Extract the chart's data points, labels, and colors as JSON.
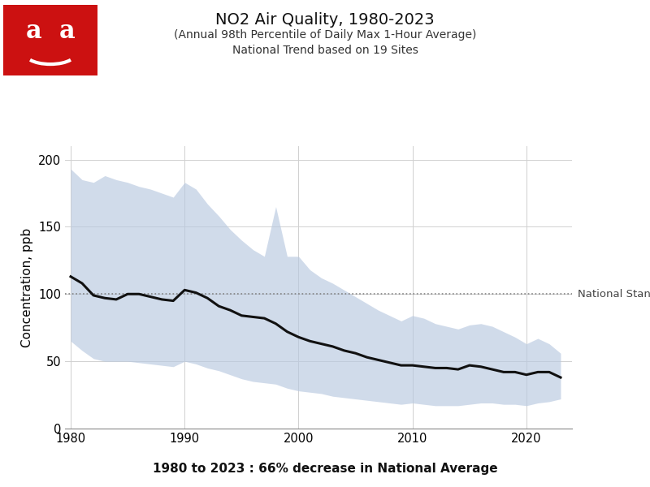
{
  "title_line1": "NO2 Air Quality, 1980-2023",
  "title_line2": "(Annual 98th Percentile of Daily Max 1-Hour Average)",
  "title_line3": "National Trend based on 19 Sites",
  "xlabel_bottom": "1980 to 2023 : 66% decrease in National Average",
  "ylabel": "Concentration, ppb",
  "national_standard": 100,
  "national_standard_label": "National Standard",
  "ylim": [
    0,
    210
  ],
  "yticks": [
    0,
    50,
    100,
    150,
    200
  ],
  "background_color": "#ffffff",
  "shade_color": "#b8c8e0",
  "line_color": "#111111",
  "years": [
    1980,
    1981,
    1982,
    1983,
    1984,
    1985,
    1986,
    1987,
    1988,
    1989,
    1990,
    1991,
    1992,
    1993,
    1994,
    1995,
    1996,
    1997,
    1998,
    1999,
    2000,
    2001,
    2002,
    2003,
    2004,
    2005,
    2006,
    2007,
    2008,
    2009,
    2010,
    2011,
    2012,
    2013,
    2014,
    2015,
    2016,
    2017,
    2018,
    2019,
    2020,
    2021,
    2022,
    2023
  ],
  "mean": [
    113,
    108,
    99,
    97,
    96,
    100,
    100,
    98,
    96,
    95,
    103,
    101,
    97,
    91,
    88,
    84,
    83,
    82,
    78,
    72,
    68,
    65,
    63,
    61,
    58,
    56,
    53,
    51,
    49,
    47,
    47,
    46,
    45,
    45,
    44,
    47,
    46,
    44,
    42,
    42,
    40,
    42,
    42,
    38
  ],
  "upper": [
    193,
    185,
    183,
    188,
    185,
    183,
    180,
    178,
    175,
    172,
    183,
    178,
    167,
    158,
    148,
    140,
    133,
    128,
    165,
    128,
    128,
    118,
    112,
    108,
    103,
    98,
    93,
    88,
    84,
    80,
    84,
    82,
    78,
    76,
    74,
    77,
    78,
    76,
    72,
    68,
    63,
    67,
    63,
    56
  ],
  "lower": [
    65,
    58,
    52,
    50,
    50,
    50,
    49,
    48,
    47,
    46,
    50,
    48,
    45,
    43,
    40,
    37,
    35,
    34,
    33,
    30,
    28,
    27,
    26,
    24,
    23,
    22,
    21,
    20,
    19,
    18,
    19,
    18,
    17,
    17,
    17,
    18,
    19,
    19,
    18,
    18,
    17,
    19,
    20,
    22
  ]
}
